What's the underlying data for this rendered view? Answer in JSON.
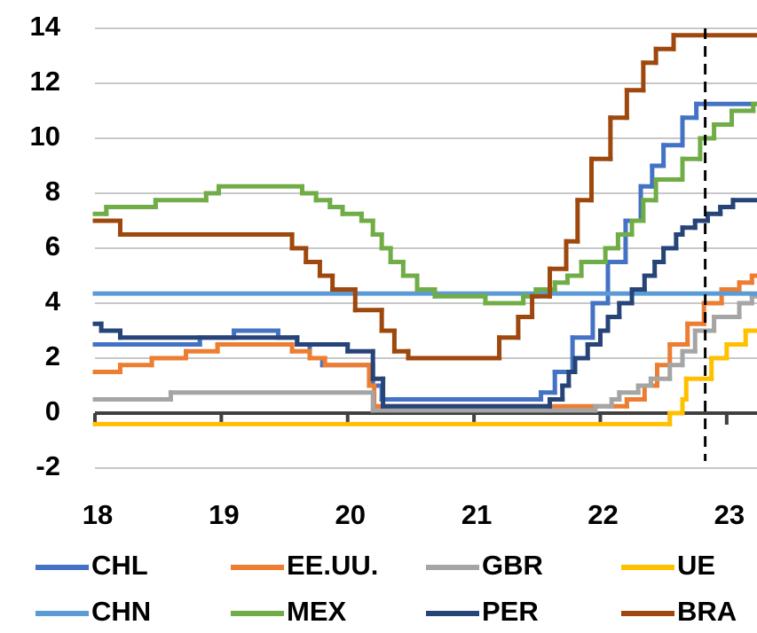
{
  "chart_data": {
    "type": "line",
    "step": "post",
    "xlim": [
      18,
      23.24
    ],
    "xticks": [
      18,
      19,
      20,
      21,
      22,
      23
    ],
    "ylim": [
      -2,
      14
    ],
    "yticks": [
      -2,
      0,
      2,
      4,
      6,
      8,
      10,
      12,
      14
    ],
    "grid": true,
    "vline": 22.83,
    "legend": "bottom",
    "series": [
      {
        "name": "CHL",
        "color": "#4472c4",
        "x": [
          18,
          18.83,
          19.1,
          19.45,
          19.6,
          19.7,
          19.8,
          20.2,
          20.27,
          21.53,
          21.64,
          21.78,
          21.94,
          22.06,
          22.2,
          22.32,
          22.41,
          22.5,
          22.65,
          22.76
        ],
        "values": [
          2.5,
          2.75,
          3.0,
          2.75,
          2.5,
          2.0,
          1.75,
          1.0,
          0.5,
          0.75,
          1.5,
          2.75,
          4.0,
          5.5,
          7.0,
          8.25,
          9.0,
          9.75,
          10.75,
          11.25
        ]
      },
      {
        "name": "EE.UU.",
        "color": "#ed7d31",
        "x": [
          18,
          18.2,
          18.45,
          18.72,
          18.97,
          19.56,
          19.7,
          19.82,
          20.17,
          20.21,
          22.21,
          22.35,
          22.45,
          22.55,
          22.69,
          22.82,
          22.96,
          23.1,
          23.2
        ],
        "values": [
          1.5,
          1.75,
          2.0,
          2.25,
          2.5,
          2.25,
          2.0,
          1.75,
          1.0,
          0.25,
          0.5,
          1.0,
          1.75,
          2.5,
          3.25,
          4.0,
          4.5,
          4.75,
          5.0
        ]
      },
      {
        "name": "GBR",
        "color": "#a5a5a5",
        "x": [
          18,
          18.6,
          20.2,
          21.96,
          22.09,
          22.15,
          22.3,
          22.4,
          22.55,
          22.65,
          22.75,
          22.9,
          23.1,
          23.2
        ],
        "values": [
          0.5,
          0.75,
          0.1,
          0.25,
          0.5,
          0.75,
          1.0,
          1.25,
          1.75,
          2.25,
          3.0,
          3.5,
          4.0,
          4.25
        ]
      },
      {
        "name": "UE",
        "color": "#ffc000",
        "x": [
          18,
          22.55,
          22.65,
          22.68,
          22.88,
          23.0,
          23.15
        ],
        "values": [
          -0.4,
          0,
          0.5,
          1.25,
          2.0,
          2.5,
          3.0
        ]
      },
      {
        "name": "CHN",
        "color": "#5b9bd5",
        "x": [
          18
        ],
        "values": [
          4.35
        ]
      },
      {
        "name": "MEX",
        "color": "#70ad47",
        "x": [
          18,
          18.09,
          18.48,
          18.88,
          18.98,
          19.64,
          19.75,
          19.86,
          19.96,
          20.11,
          20.2,
          20.27,
          20.34,
          20.44,
          20.55,
          20.69,
          21.09,
          21.39,
          21.49,
          21.64,
          21.74,
          21.85,
          22.04,
          22.14,
          22.25,
          22.34,
          22.44,
          22.65,
          22.79,
          22.9,
          23.04,
          23.21
        ],
        "values": [
          7.25,
          7.5,
          7.75,
          8.0,
          8.25,
          8.0,
          7.75,
          7.5,
          7.25,
          7.0,
          6.5,
          6.0,
          5.5,
          5.0,
          4.5,
          4.25,
          4.0,
          4.25,
          4.5,
          4.75,
          5.0,
          5.5,
          6.0,
          6.5,
          7.0,
          7.75,
          8.5,
          9.25,
          10.0,
          10.5,
          11.0,
          11.25
        ]
      },
      {
        "name": "PER",
        "color": "#264478",
        "x": [
          18,
          18.05,
          18.2,
          19.6,
          20.0,
          20.2,
          20.28,
          21.6,
          21.7,
          21.75,
          21.8,
          21.9,
          22.0,
          22.06,
          22.15,
          22.25,
          22.35,
          22.43,
          22.5,
          22.6,
          22.65,
          22.75,
          22.85,
          22.95,
          23.05
        ],
        "values": [
          3.25,
          3.0,
          2.75,
          2.5,
          2.25,
          1.25,
          0.25,
          0.5,
          1.0,
          1.5,
          2.0,
          2.5,
          3.0,
          3.5,
          4.0,
          4.5,
          5.0,
          5.5,
          6.0,
          6.5,
          6.75,
          7.0,
          7.25,
          7.5,
          7.75
        ]
      },
      {
        "name": "BRA",
        "color": "#9e480e",
        "x": [
          18,
          18.2,
          19.56,
          19.67,
          19.78,
          19.88,
          20.06,
          20.27,
          20.37,
          20.48,
          21.2,
          21.35,
          21.46,
          21.6,
          21.73,
          21.82,
          21.93,
          22.08,
          22.21,
          22.34,
          22.44,
          22.58
        ],
        "values": [
          7.0,
          6.5,
          6.0,
          5.5,
          5.0,
          4.5,
          3.75,
          3.0,
          2.25,
          2.0,
          2.75,
          3.5,
          4.25,
          5.25,
          6.25,
          7.75,
          9.25,
          10.75,
          11.75,
          12.75,
          13.25,
          13.75
        ]
      }
    ]
  }
}
